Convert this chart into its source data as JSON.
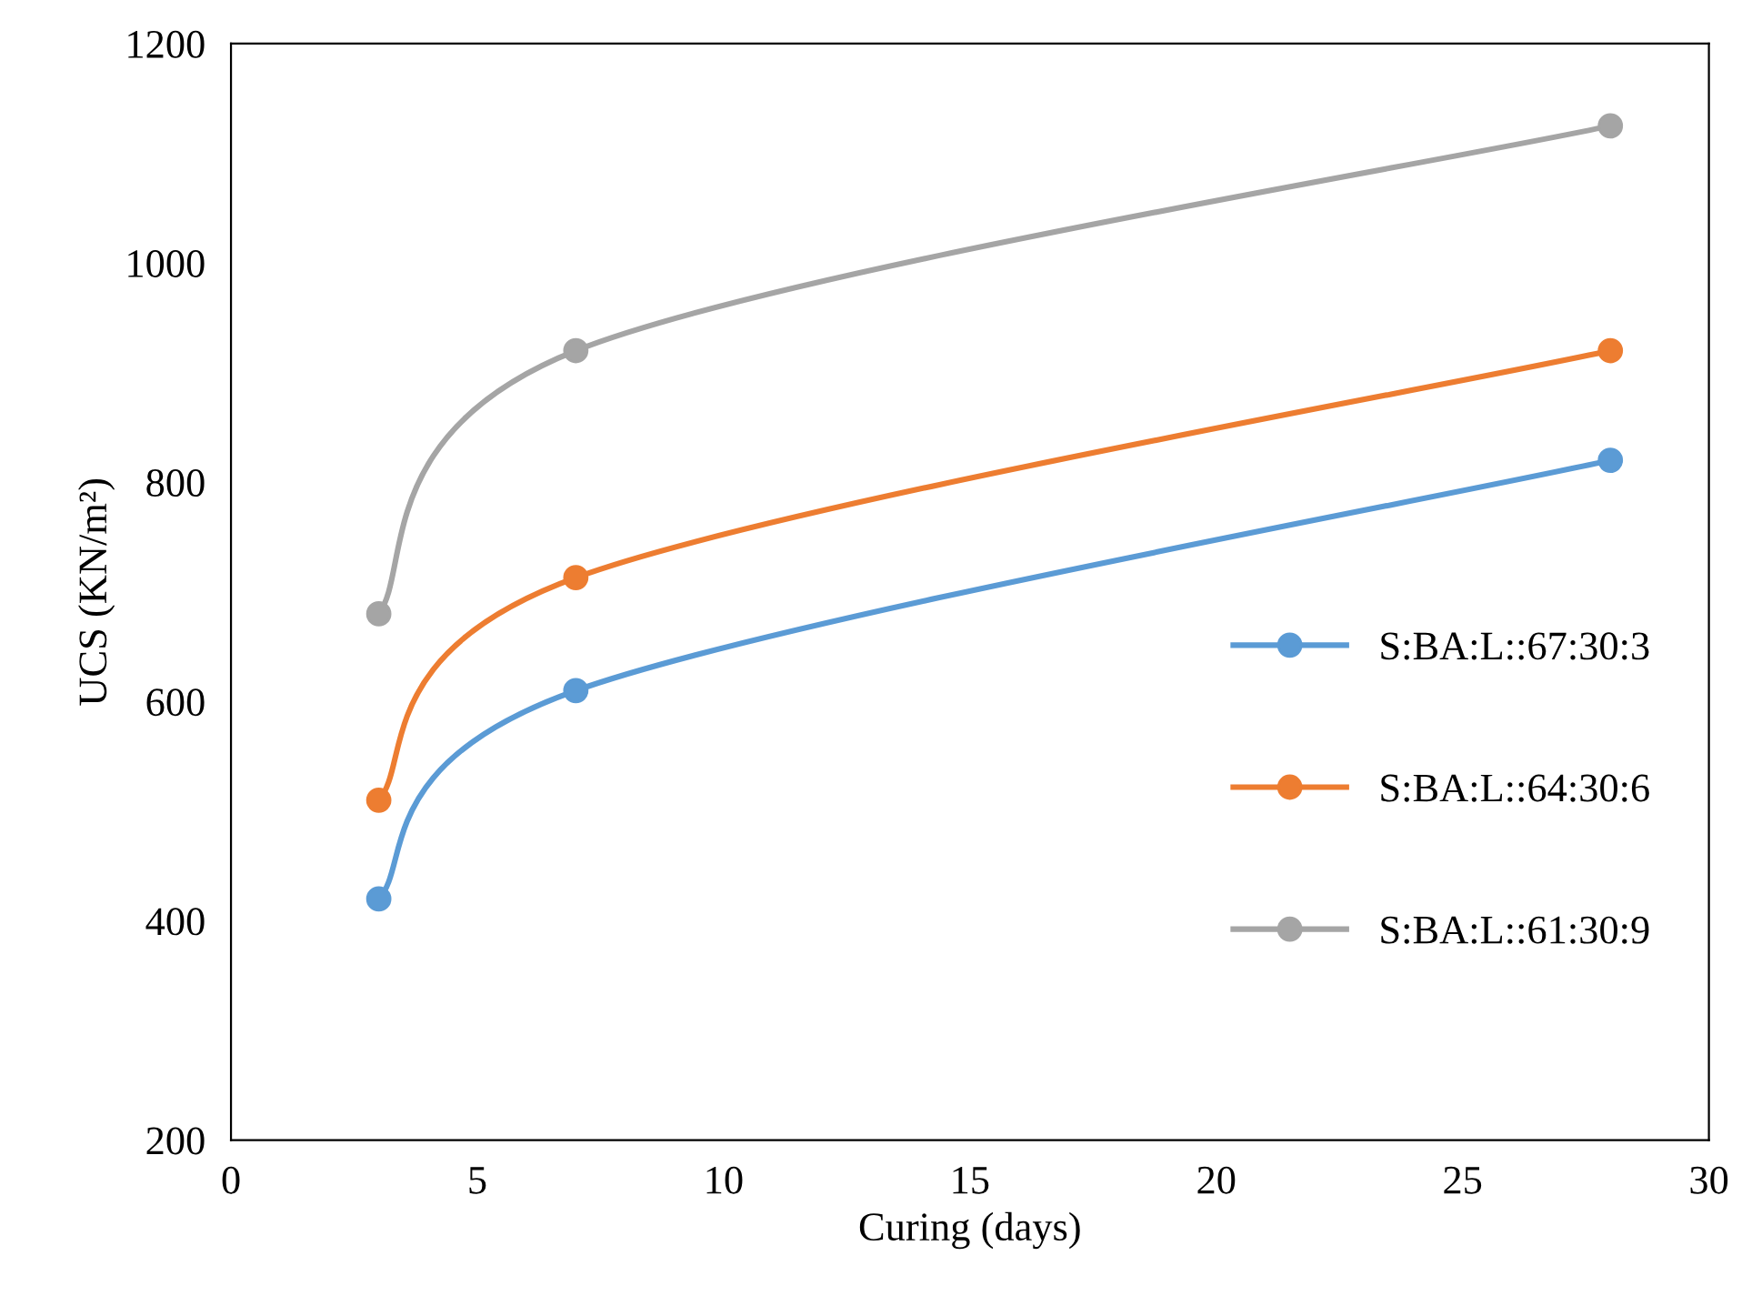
{
  "chart_data": {
    "type": "line",
    "xlabel": "Curing (days)",
    "ylabel": "UCS (KN/m²)",
    "x": [
      3,
      7,
      28
    ],
    "series": [
      {
        "name": "S:BA:L::67:30:3",
        "color": "#5b9bd5",
        "values": [
          420,
          610,
          820
        ]
      },
      {
        "name": "S:BA:L::64:30:6",
        "color": "#ed7d31",
        "values": [
          510,
          713,
          920
        ]
      },
      {
        "name": "S:BA:L::61:30:9",
        "color": "#a5a5a5",
        "values": [
          680,
          920,
          1125
        ]
      }
    ],
    "xlim": [
      0,
      30
    ],
    "xticks": [
      0,
      5,
      10,
      15,
      20,
      25,
      30
    ],
    "ylim": [
      200,
      1200
    ],
    "yticks": [
      200,
      400,
      600,
      800,
      1000,
      1200
    ],
    "grid": false,
    "legend": "right",
    "marker": "circle",
    "line_style": "solid"
  }
}
